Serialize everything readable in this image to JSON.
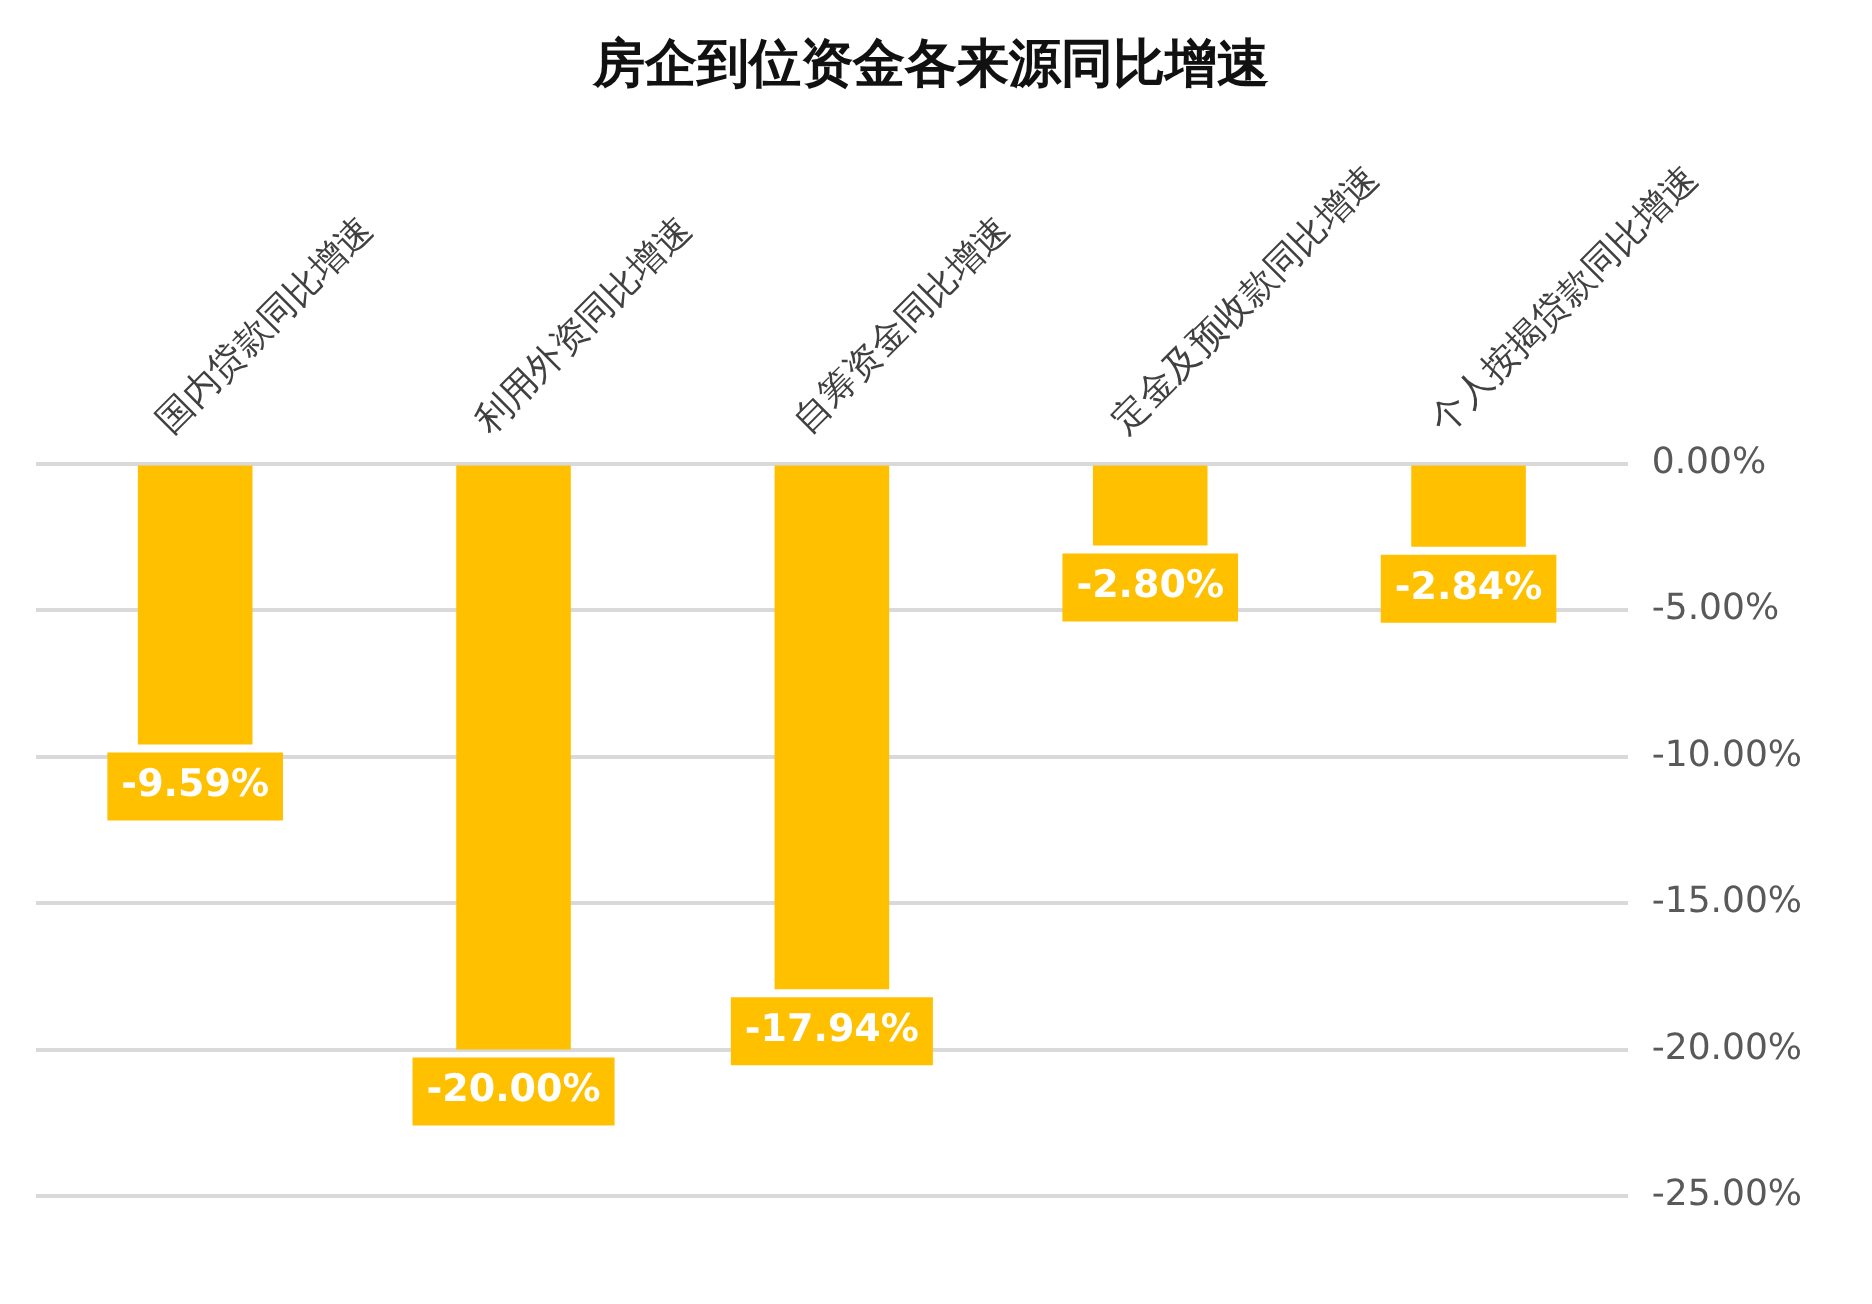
{
  "chart_data": {
    "type": "bar",
    "title": "房企到位资金各来源同比增速",
    "categories": [
      "国内贷款同比增速",
      "利用外资同比增速",
      "自筹资金同比增速",
      "定金及预收款同比增速",
      "个人按揭贷款同比增速"
    ],
    "values": [
      -9.59,
      -20.0,
      -17.94,
      -2.8,
      -2.84
    ],
    "value_labels": [
      "-9.59%",
      "-20.00%",
      "-17.94%",
      "-2.80%",
      "-2.84%"
    ],
    "color": "#ffc000",
    "ylim": [
      -25,
      0
    ],
    "yticks": [
      {
        "value": 0,
        "label": "0.00%"
      },
      {
        "value": -5,
        "label": "-5.00%"
      },
      {
        "value": -10,
        "label": "-10.00%"
      },
      {
        "value": -15,
        "label": "-15.00%"
      },
      {
        "value": -20,
        "label": "-20.00%"
      },
      {
        "value": -25,
        "label": "-25.00%"
      }
    ],
    "grid": "y",
    "legend": false
  }
}
